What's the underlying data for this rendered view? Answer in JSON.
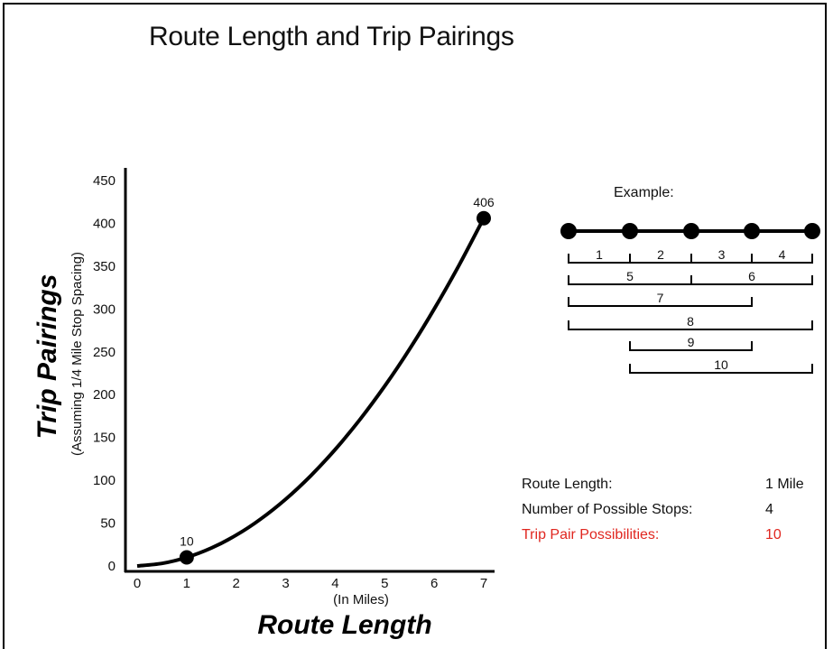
{
  "title": "Route Length and Trip Pairings",
  "chart_data": {
    "type": "line",
    "title": "Route Length and Trip Pairings",
    "xlabel": "Route Length",
    "xlabel_sub": "(In Miles)",
    "ylabel": "Trip Pairings",
    "ylabel_sub": "(Assuming 1/4 Mile Stop Spacing)",
    "x_ticks": [
      "0",
      "1",
      "2",
      "3",
      "4",
      "5",
      "6",
      "7"
    ],
    "y_ticks": [
      "0",
      "50",
      "100",
      "150",
      "200",
      "250",
      "300",
      "350",
      "400",
      "450"
    ],
    "xlim": [
      0,
      7
    ],
    "ylim": [
      0,
      450
    ],
    "grid": false,
    "series": [
      {
        "x": [
          0,
          0.5,
          1,
          1.5,
          2,
          2.5,
          3,
          3.5,
          4,
          4.5,
          5,
          5.5,
          6,
          6.5,
          7
        ],
        "values": [
          0,
          3,
          10,
          21,
          36,
          55,
          78,
          105,
          136,
          171,
          210,
          253,
          300,
          351,
          406
        ]
      }
    ],
    "labeled_points": [
      {
        "x": 1,
        "y": 10,
        "label": "10"
      },
      {
        "x": 7,
        "y": 406,
        "label": "406"
      }
    ]
  },
  "example": {
    "label": "Example:",
    "segments": [
      "1",
      "2",
      "3",
      "4",
      "5",
      "6",
      "7",
      "8",
      "9",
      "10"
    ]
  },
  "info": {
    "route_length_label": "Route Length:",
    "route_length_value": "1 Mile",
    "stops_label": "Number of Possible Stops:",
    "stops_value": "4",
    "pairs_label": "Trip Pair Possibilities:",
    "pairs_value": "10",
    "highlight_color": "#e0261f"
  }
}
